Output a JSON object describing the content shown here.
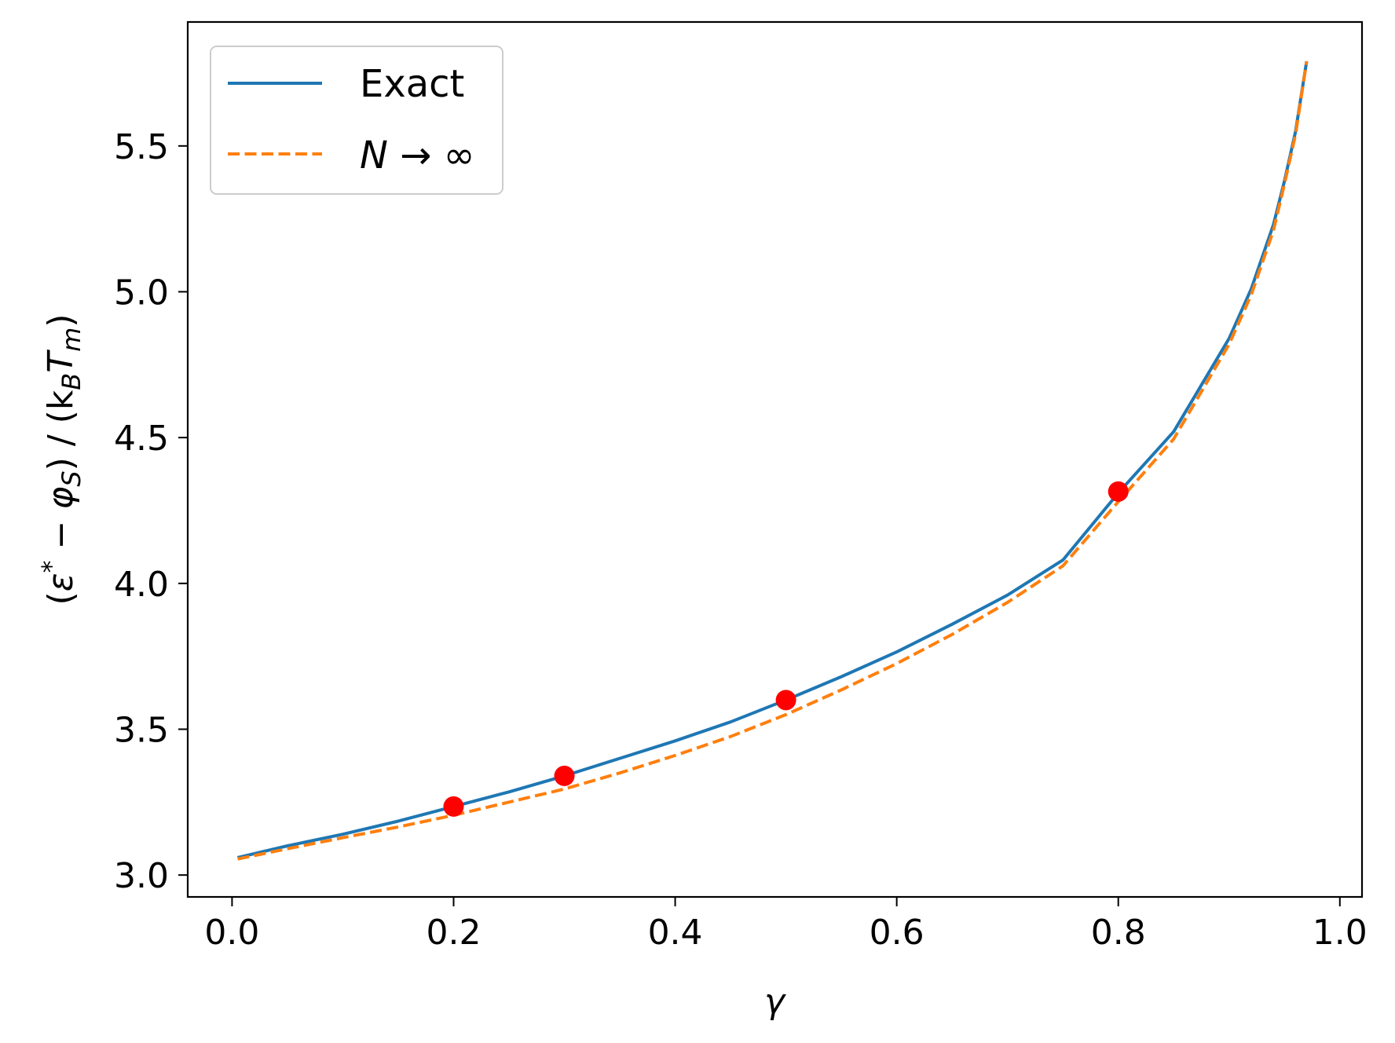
{
  "chart_data": {
    "type": "line",
    "xlabel": "γ",
    "ylabel": "(ε* − φS) / (kB Tm)",
    "ylabel_parts": {
      "open_paren": "(",
      "epsilon": "ε",
      "star": "*",
      "minus": " − ",
      "phi": "φ",
      "phi_sub": "S",
      "mid": ") / (k",
      "k_sub": "B",
      "t": "T",
      "t_sub": "m",
      "close_paren": ")"
    },
    "xlim": [
      -0.04,
      1.02
    ],
    "ylim": [
      2.925,
      5.925
    ],
    "x_ticks": [
      0.0,
      0.2,
      0.4,
      0.6,
      0.8,
      1.0
    ],
    "x_tick_labels": [
      "0.0",
      "0.2",
      "0.4",
      "0.6",
      "0.8",
      "1.0"
    ],
    "y_ticks": [
      3.0,
      3.5,
      4.0,
      4.5,
      5.0,
      5.5
    ],
    "y_tick_labels": [
      "3.0",
      "3.5",
      "4.0",
      "4.5",
      "5.0",
      "5.5"
    ],
    "grid": false,
    "legend_position": "top-left",
    "series": [
      {
        "name": "Exact",
        "style": "solid",
        "color": "#1f77b4",
        "x": [
          0.005,
          0.05,
          0.1,
          0.15,
          0.2,
          0.25,
          0.3,
          0.35,
          0.4,
          0.45,
          0.5,
          0.55,
          0.6,
          0.65,
          0.7,
          0.75,
          0.8,
          0.85,
          0.9,
          0.92,
          0.94,
          0.95,
          0.96,
          0.97
        ],
        "y": [
          3.06,
          3.1,
          3.14,
          3.185,
          3.235,
          3.285,
          3.34,
          3.4,
          3.46,
          3.525,
          3.6,
          3.68,
          3.765,
          3.86,
          3.96,
          4.08,
          4.31,
          4.52,
          4.84,
          5.01,
          5.23,
          5.38,
          5.55,
          5.79
        ]
      },
      {
        "name": "N → ∞",
        "label_parts": {
          "n": "N",
          "rest": " → ∞"
        },
        "style": "dashed",
        "color": "#ff7f0e",
        "x": [
          0.005,
          0.05,
          0.1,
          0.15,
          0.2,
          0.25,
          0.3,
          0.35,
          0.4,
          0.45,
          0.5,
          0.55,
          0.6,
          0.65,
          0.7,
          0.75,
          0.8,
          0.85,
          0.9,
          0.92,
          0.94,
          0.95,
          0.96,
          0.97
        ],
        "y": [
          3.055,
          3.09,
          3.128,
          3.165,
          3.205,
          3.25,
          3.295,
          3.35,
          3.41,
          3.475,
          3.55,
          3.635,
          3.725,
          3.825,
          3.935,
          4.06,
          4.28,
          4.495,
          4.82,
          4.99,
          5.21,
          5.37,
          5.54,
          5.79
        ]
      }
    ],
    "points": {
      "color": "#ff0000",
      "x": [
        0.2,
        0.3,
        0.5,
        0.8
      ],
      "y": [
        3.235,
        3.34,
        3.6,
        4.315
      ]
    }
  }
}
